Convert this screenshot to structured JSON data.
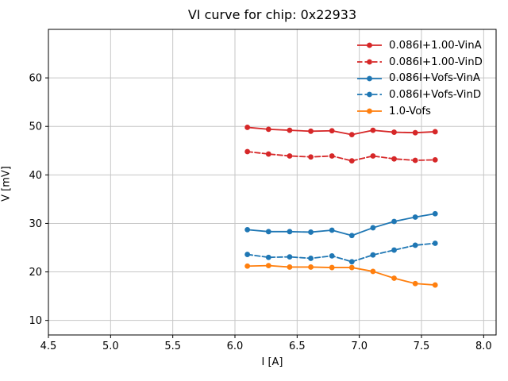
{
  "chart_data": {
    "type": "line",
    "title": "VI curve for chip: 0x22933",
    "xlabel": "I [A]",
    "ylabel": "V [mV]",
    "xlim": [
      4.5,
      8.1
    ],
    "ylim": [
      7,
      70
    ],
    "x_ticks": [
      4.5,
      5.0,
      5.5,
      6.0,
      6.5,
      7.0,
      7.5,
      8.0
    ],
    "x_tick_labels": [
      "4.5",
      "5.0",
      "5.5",
      "6.0",
      "6.5",
      "7.0",
      "7.5",
      "8.0"
    ],
    "y_ticks": [
      10,
      20,
      30,
      40,
      50,
      60
    ],
    "y_tick_labels": [
      "10",
      "20",
      "30",
      "40",
      "50",
      "60"
    ],
    "grid": true,
    "legend_position": "upper right",
    "x": [
      6.1,
      6.27,
      6.44,
      6.61,
      6.78,
      6.94,
      7.11,
      7.28,
      7.45,
      7.61
    ],
    "series": [
      {
        "name": "0.086I+1.00-VinA",
        "color": "#d62728",
        "linestyle": "solid",
        "marker": "circle",
        "values": [
          49.8,
          49.4,
          49.2,
          49.0,
          49.1,
          48.3,
          49.2,
          48.8,
          48.7,
          48.9
        ]
      },
      {
        "name": "0.086I+1.00-VinD",
        "color": "#d62728",
        "linestyle": "dashed",
        "marker": "circle",
        "values": [
          44.8,
          44.3,
          43.9,
          43.7,
          43.9,
          42.9,
          43.9,
          43.3,
          43.0,
          43.1
        ]
      },
      {
        "name": "0.086I+Vofs-VinA",
        "color": "#1f77b4",
        "linestyle": "solid",
        "marker": "circle",
        "values": [
          28.7,
          28.3,
          28.3,
          28.2,
          28.6,
          27.5,
          29.1,
          30.4,
          31.3,
          32.0
        ]
      },
      {
        "name": "0.086I+Vofs-VinD",
        "color": "#1f77b4",
        "linestyle": "dashed",
        "marker": "circle",
        "values": [
          23.6,
          23.0,
          23.1,
          22.8,
          23.3,
          22.1,
          23.5,
          24.5,
          25.5,
          25.9
        ]
      },
      {
        "name": "1.0-Vofs",
        "color": "#ff7f0e",
        "linestyle": "solid",
        "marker": "circle",
        "values": [
          21.2,
          21.3,
          21.0,
          21.0,
          20.9,
          20.9,
          20.1,
          18.7,
          17.6,
          17.3
        ]
      }
    ],
    "style": {
      "grid_color": "#c6c6c6",
      "spine_color": "#000000",
      "tick_color": "#000000",
      "text_color": "#000000",
      "background": "#ffffff"
    }
  }
}
